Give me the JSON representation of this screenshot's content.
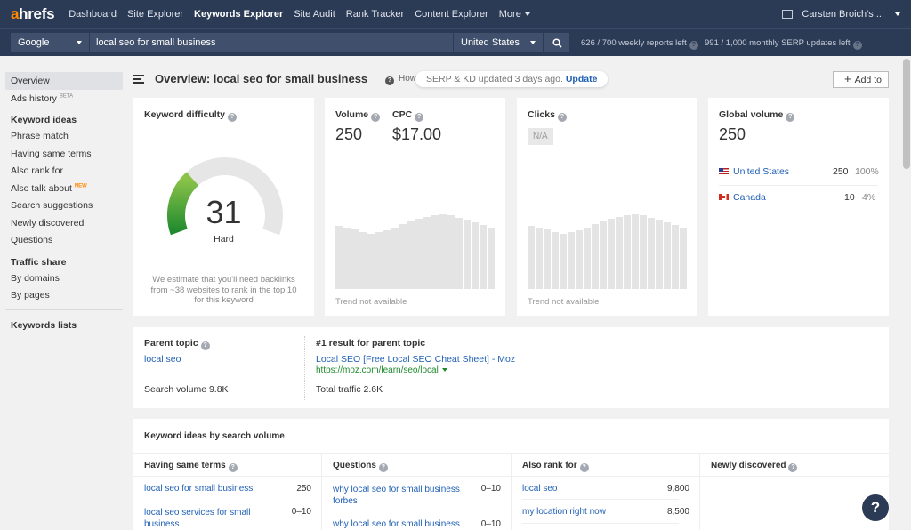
{
  "nav": {
    "logo_a": "a",
    "logo_rest": "hrefs",
    "items": [
      "Dashboard",
      "Site Explorer",
      "Keywords Explorer",
      "Site Audit",
      "Rank Tracker",
      "Content Explorer",
      "More"
    ],
    "user": "Carsten Broich's ..."
  },
  "search": {
    "engine": "Google",
    "query": "local seo for small business",
    "country": "United States",
    "weekly_reports": "626 / 700 weekly reports left",
    "serp_updates": "991 / 1,000 monthly SERP updates left"
  },
  "sidebar": {
    "overview": "Overview",
    "ads_history": "Ads history",
    "ads_badge": "BETA",
    "keyword_ideas_head": "Keyword ideas",
    "ideas": [
      "Phrase match",
      "Having same terms",
      "Also rank for",
      "Also talk about",
      "Search suggestions",
      "Newly discovered",
      "Questions"
    ],
    "new_badge": "NEW",
    "traffic_head": "Traffic share",
    "traffic": [
      "By domains",
      "By pages"
    ],
    "lists_head": "Keywords lists"
  },
  "header": {
    "title": "Overview: local seo for small business",
    "how": "How",
    "toast_text": "SERP & KD updated 3 days ago.",
    "toast_link": "Update",
    "add_to": "Add to"
  },
  "kd": {
    "label": "Keyword difficulty",
    "value": "31",
    "level": "Hard",
    "note": "We estimate that you'll need backlinks from ~38 websites to rank in the top 10 for this keyword",
    "fraction": 0.31
  },
  "volume": {
    "label": "Volume",
    "value": "250",
    "cpc_label": "CPC",
    "cpc_value": "$17.00",
    "trend_note": "Trend not available",
    "trend": [
      70,
      68,
      66,
      63,
      61,
      63,
      65,
      68,
      72,
      75,
      78,
      80,
      82,
      83,
      82,
      79,
      77,
      74,
      71,
      68
    ]
  },
  "clicks": {
    "label": "Clicks",
    "value": "N/A",
    "trend_note": "Trend not available",
    "trend": [
      70,
      68,
      66,
      63,
      61,
      63,
      65,
      68,
      72,
      75,
      78,
      80,
      82,
      83,
      82,
      79,
      77,
      74,
      71,
      68
    ]
  },
  "global": {
    "label": "Global volume",
    "value": "250",
    "countries": [
      {
        "name": "United States",
        "volume": "250",
        "share": "100%"
      },
      {
        "name": "Canada",
        "volume": "10",
        "share": "4%"
      }
    ]
  },
  "parent": {
    "label": "Parent topic",
    "topic": "local seo",
    "volume": "Search volume 9.8K",
    "result_label": "#1 result for parent topic",
    "result_title": "Local SEO [Free Local SEO Cheat Sheet] - Moz",
    "result_url": "https://moz.com/learn/seo/local",
    "traffic": "Total traffic 2.6K"
  },
  "ideas": {
    "title": "Keyword ideas by search volume",
    "columns": [
      {
        "head": "Having same terms",
        "rows": [
          {
            "kw": "local seo for small business",
            "val": "250"
          },
          {
            "kw": "local seo services for small business",
            "val": "0–10"
          }
        ]
      },
      {
        "head": "Questions",
        "rows": [
          {
            "kw": "why local seo for small business forbes",
            "val": "0–10"
          },
          {
            "kw": "why local seo for small business",
            "val": "0–10"
          }
        ]
      },
      {
        "head": "Also rank for",
        "rows": [
          {
            "kw": "local seo",
            "val": "9,800"
          },
          {
            "kw": "my location right now",
            "val": "8,500"
          }
        ]
      },
      {
        "head": "Newly discovered",
        "rows": []
      }
    ]
  },
  "help": "?"
}
